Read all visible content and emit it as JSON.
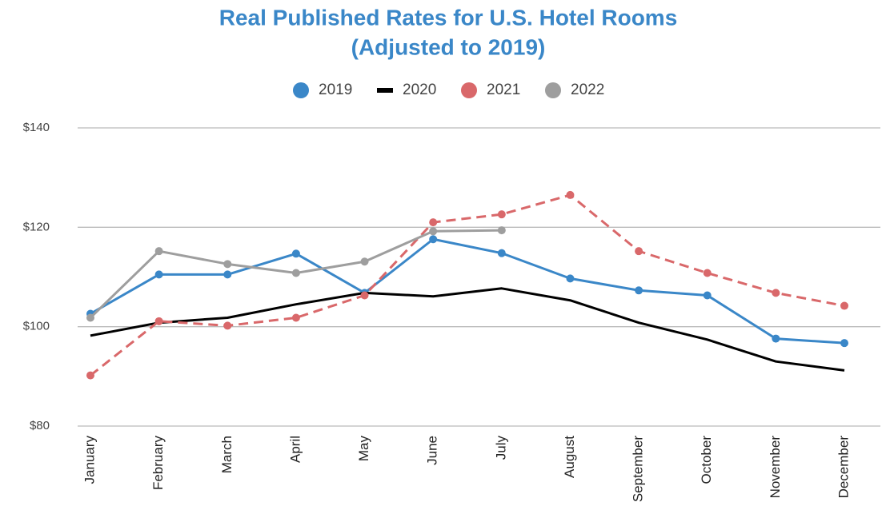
{
  "chart_data": {
    "type": "line",
    "title": "Real Published Rates for U.S. Hotel Rooms",
    "subtitle": "(Adjusted to 2019)",
    "categories": [
      "January",
      "February",
      "March",
      "April",
      "May",
      "June",
      "July",
      "August",
      "September",
      "October",
      "November",
      "December"
    ],
    "series": [
      {
        "name": "2019",
        "color": "#3a87c8",
        "dashed": false,
        "markers": true,
        "values": [
          102.6,
          110.5,
          110.5,
          114.7,
          106.8,
          117.6,
          114.8,
          109.7,
          107.3,
          106.3,
          97.6,
          96.7
        ]
      },
      {
        "name": "2020",
        "color": "#000000",
        "dashed": false,
        "markers": false,
        "values": [
          98.2,
          100.8,
          101.8,
          104.5,
          106.8,
          106.1,
          107.7,
          105.3,
          100.8,
          97.4,
          93.0,
          91.2
        ]
      },
      {
        "name": "2021",
        "color": "#d9686a",
        "dashed": true,
        "markers": true,
        "values": [
          90.2,
          101.1,
          100.2,
          101.8,
          106.3,
          121.0,
          122.6,
          126.5,
          115.2,
          110.8,
          106.8,
          104.2
        ]
      },
      {
        "name": "2022",
        "color": "#9e9e9e",
        "dashed": false,
        "markers": true,
        "values": [
          101.8,
          115.2,
          112.6,
          110.8,
          113.1,
          119.2,
          119.4,
          null,
          null,
          null,
          null,
          null
        ]
      }
    ],
    "ylim": [
      80,
      140
    ],
    "yticks": [
      {
        "value": 80,
        "label": "$80"
      },
      {
        "value": 100,
        "label": "$100"
      },
      {
        "value": 120,
        "label": "$120"
      },
      {
        "value": 140,
        "label": "$140"
      }
    ],
    "grid": true,
    "legend": "top"
  }
}
